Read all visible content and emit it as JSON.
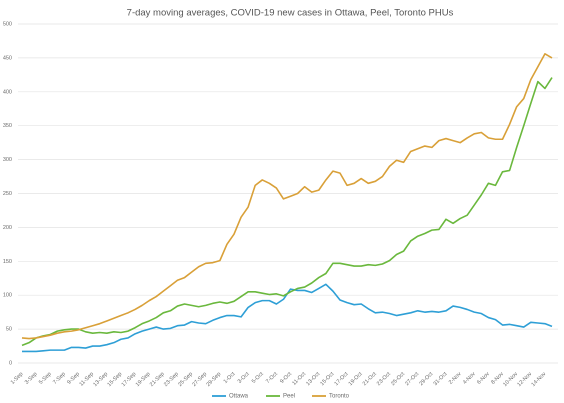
{
  "chart_data": {
    "type": "line",
    "title": "7-day moving averages, COVID-19 new cases in Ottawa, Peel, Toronto PHUs",
    "categories": [
      "1-Sep",
      null,
      "3-Sep",
      null,
      "5-Sep",
      null,
      "7-Sep",
      null,
      "9-Sep",
      null,
      "11-Sep",
      null,
      "13-Sep",
      null,
      "15-Sep",
      null,
      "17-Sep",
      null,
      "19-Sep",
      null,
      "21-Sep",
      null,
      "23-Sep",
      null,
      "25-Sep",
      null,
      "27-Sep",
      null,
      "29-Sep",
      null,
      "1-Oct",
      null,
      "3-Oct",
      null,
      "5-Oct",
      null,
      "7-Oct",
      null,
      "9-Oct",
      null,
      "11-Oct",
      null,
      "13-Oct",
      null,
      "15-Oct",
      null,
      "17-Oct",
      null,
      "19-Oct",
      null,
      "21-Oct",
      null,
      "23-Oct",
      null,
      "25-Oct",
      null,
      "27-Oct",
      null,
      "29-Oct",
      null,
      "31-Oct",
      null,
      "2-Nov",
      null,
      "4-Nov",
      null,
      "6-Nov",
      null,
      "8-Nov",
      null,
      "10-Nov",
      null,
      "12-Nov",
      null,
      "14-Nov",
      null
    ],
    "series": [
      {
        "name": "Ottawa",
        "color": "#2e9fd6",
        "values": [
          17,
          17,
          17,
          18,
          19,
          19,
          19,
          23,
          23,
          22,
          25,
          25,
          27,
          30,
          35,
          37,
          43,
          47,
          50,
          53,
          50,
          51,
          55,
          56,
          61,
          59,
          58,
          63,
          67,
          70,
          70,
          68,
          82,
          89,
          92,
          92,
          87,
          94,
          109,
          107,
          107,
          104,
          110,
          116,
          106,
          93,
          89,
          86,
          87,
          80,
          74,
          75,
          73,
          70,
          72,
          74,
          77,
          75,
          76,
          75,
          77,
          84,
          82,
          79,
          75,
          73,
          67,
          64,
          56,
          57,
          55,
          53,
          60,
          59,
          58,
          54
        ]
      },
      {
        "name": "Peel",
        "color": "#6ab83d",
        "values": [
          26,
          30,
          37,
          40,
          42,
          47,
          49,
          50,
          50,
          46,
          44,
          45,
          44,
          46,
          45,
          47,
          52,
          58,
          62,
          67,
          74,
          77,
          84,
          87,
          85,
          83,
          85,
          88,
          90,
          88,
          91,
          98,
          105,
          105,
          103,
          101,
          102,
          99,
          105,
          110,
          112,
          118,
          126,
          132,
          147,
          147,
          145,
          143,
          143,
          145,
          144,
          146,
          151,
          160,
          165,
          180,
          187,
          191,
          196,
          197,
          212,
          206,
          213,
          218,
          233,
          248,
          265,
          262,
          282,
          284,
          318,
          350,
          383,
          415,
          405,
          421
        ]
      },
      {
        "name": "Toronto",
        "color": "#d9a038",
        "values": [
          37,
          36,
          37,
          39,
          41,
          44,
          46,
          47,
          49,
          52,
          55,
          58,
          62,
          66,
          70,
          74,
          79,
          85,
          92,
          98,
          106,
          114,
          122,
          126,
          134,
          142,
          147,
          148,
          151,
          175,
          190,
          215,
          230,
          262,
          270,
          265,
          258,
          242,
          246,
          250,
          260,
          252,
          255,
          270,
          283,
          280,
          262,
          265,
          272,
          265,
          268,
          275,
          290,
          299,
          296,
          312,
          316,
          320,
          318,
          328,
          331,
          328,
          325,
          332,
          338,
          340,
          332,
          330,
          330,
          352,
          378,
          390,
          418,
          437,
          456,
          450
        ]
      }
    ],
    "ylim": [
      0,
      500
    ],
    "yticks": [
      0,
      50,
      100,
      150,
      200,
      250,
      300,
      350,
      400,
      450,
      500
    ],
    "grid": true,
    "legend": "bottom"
  }
}
